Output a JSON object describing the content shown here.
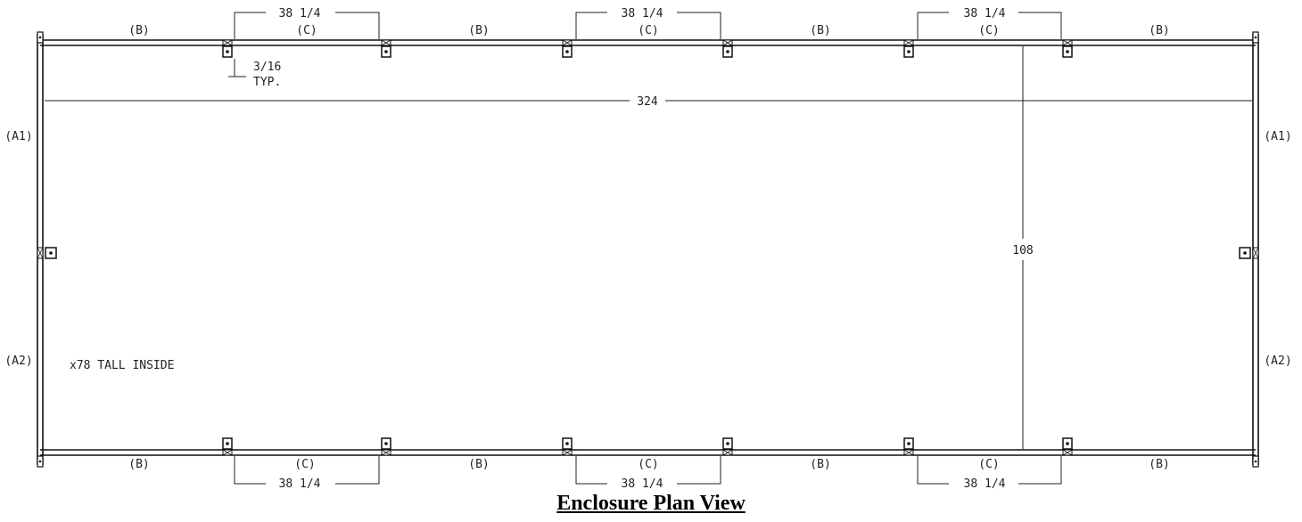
{
  "labels": {
    "b": "(B)",
    "c": "(C)",
    "a1": "(A1)",
    "a2": "(A2)"
  },
  "dimensions": {
    "c_panel_width": "38 1/4",
    "overall_length": "324",
    "overall_width": "108",
    "thickness": "3/16",
    "thickness_note": "TYP.",
    "height_note": "x78 TALL INSIDE"
  },
  "title": "Enclosure Plan View"
}
